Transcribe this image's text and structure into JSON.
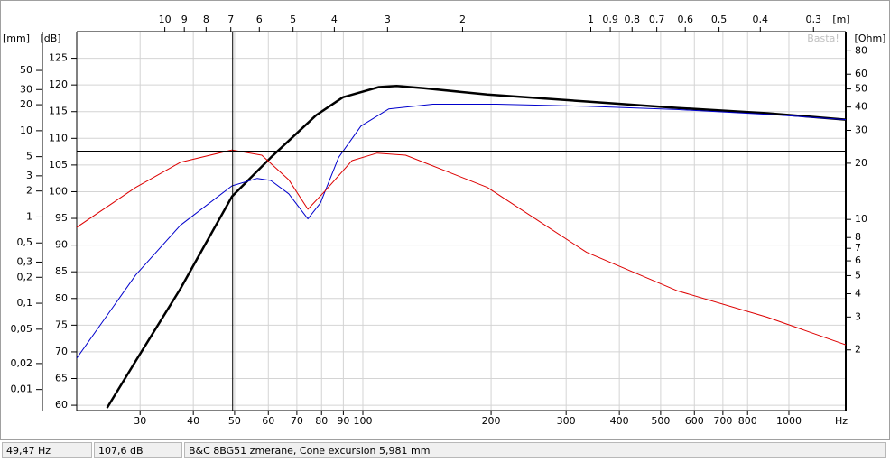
{
  "chart_data": {
    "type": "line",
    "watermark": "Basta!",
    "x_label": "Hz",
    "x_log": true,
    "xlim": [
      21.3,
      1360
    ],
    "xticks": [
      30,
      40,
      50,
      60,
      70,
      80,
      90,
      100,
      200,
      300,
      400,
      500,
      600,
      700,
      800,
      1000
    ],
    "x2_label": "[m]",
    "x2lim": [
      16.1,
      0.252
    ],
    "x2ticks": [
      10,
      9,
      8,
      7,
      6,
      5,
      4,
      3,
      2,
      1,
      {
        "value": 0.9,
        "label": "0,9"
      },
      {
        "value": 0.8,
        "label": "0,8"
      },
      {
        "value": 0.7,
        "label": "0,7"
      },
      {
        "value": 0.6,
        "label": "0,6"
      },
      {
        "value": 0.5,
        "label": "0,5"
      },
      {
        "value": 0.4,
        "label": "0,4"
      },
      {
        "value": 0.3,
        "label": "0,3"
      }
    ],
    "y_label": "[dB]",
    "ylim": [
      59,
      130
    ],
    "yticks": [
      60,
      65,
      70,
      75,
      80,
      85,
      90,
      95,
      100,
      105,
      110,
      115,
      120,
      125
    ],
    "y2_label": "[mm]",
    "y2_log": true,
    "y2lim": [
      0.0057,
      141
    ],
    "y2ticks": [
      50,
      30,
      20,
      10,
      5,
      3,
      2,
      1,
      {
        "value": 0.5,
        "label": "0,5"
      },
      {
        "value": 0.3,
        "label": "0,3"
      },
      {
        "value": 0.2,
        "label": "0,2"
      },
      {
        "value": 0.1,
        "label": "0,1"
      },
      {
        "value": 0.05,
        "label": "0,05"
      },
      {
        "value": 0.02,
        "label": "0,02"
      },
      {
        "value": 0.01,
        "label": "0,01"
      }
    ],
    "y3_label": "[Ohm]",
    "y3_log": true,
    "y3lim": [
      0.946,
      101.5
    ],
    "y3ticks": [
      80,
      60,
      50,
      40,
      30,
      20,
      10,
      8,
      7,
      6,
      5,
      4,
      3,
      2
    ],
    "grid": true,
    "series": [
      {
        "color": "#000000",
        "width": 2.5,
        "x": [
          25.1,
          29.3,
          37.3,
          49.3,
          60.8,
          77.6,
          89.8,
          109,
          120,
          139,
          196,
          335,
          546,
          889,
          1360
        ],
        "values": [
          59.5,
          68.3,
          81.8,
          99.1,
          106.4,
          114.3,
          117.7,
          119.6,
          119.8,
          119.4,
          118.2,
          116.9,
          115.7,
          114.7,
          113.5
        ]
      },
      {
        "color": "#0000cc",
        "width": 1,
        "x": [
          21.3,
          29.3,
          37.3,
          49.3,
          56.5,
          60.8,
          67,
          74.3,
          79.5,
          87.7,
          99,
          115,
          146,
          206,
          335,
          546,
          889,
          1360
        ],
        "values": [
          68.8,
          84.4,
          93.7,
          101.1,
          102.5,
          102.1,
          99.6,
          94.9,
          97.9,
          106.4,
          112.3,
          115.5,
          116.4,
          116.4,
          116.0,
          115.4,
          114.5,
          113.5
        ]
      },
      {
        "color": "#dd0000",
        "width": 1,
        "axis": "y2",
        "x": [
          21.3,
          29.3,
          37.3,
          49.3,
          57.9,
          67,
          74.3,
          81.5,
          94.3,
          108,
          126,
          196,
          335,
          546,
          889,
          1360
        ],
        "values": [
          0.76,
          2.2,
          4.3,
          5.98,
          5.2,
          2.7,
          1.23,
          2.0,
          4.5,
          5.5,
          5.2,
          2.2,
          0.39,
          0.14,
          0.069,
          0.033
        ]
      }
    ],
    "cursor": {
      "x": 49.47,
      "y": 107.6
    }
  },
  "status_bar": [
    "49,47 Hz",
    "107,6 dB",
    "B&C 8BG51 zmerane, Cone excursion 5,981 mm"
  ]
}
